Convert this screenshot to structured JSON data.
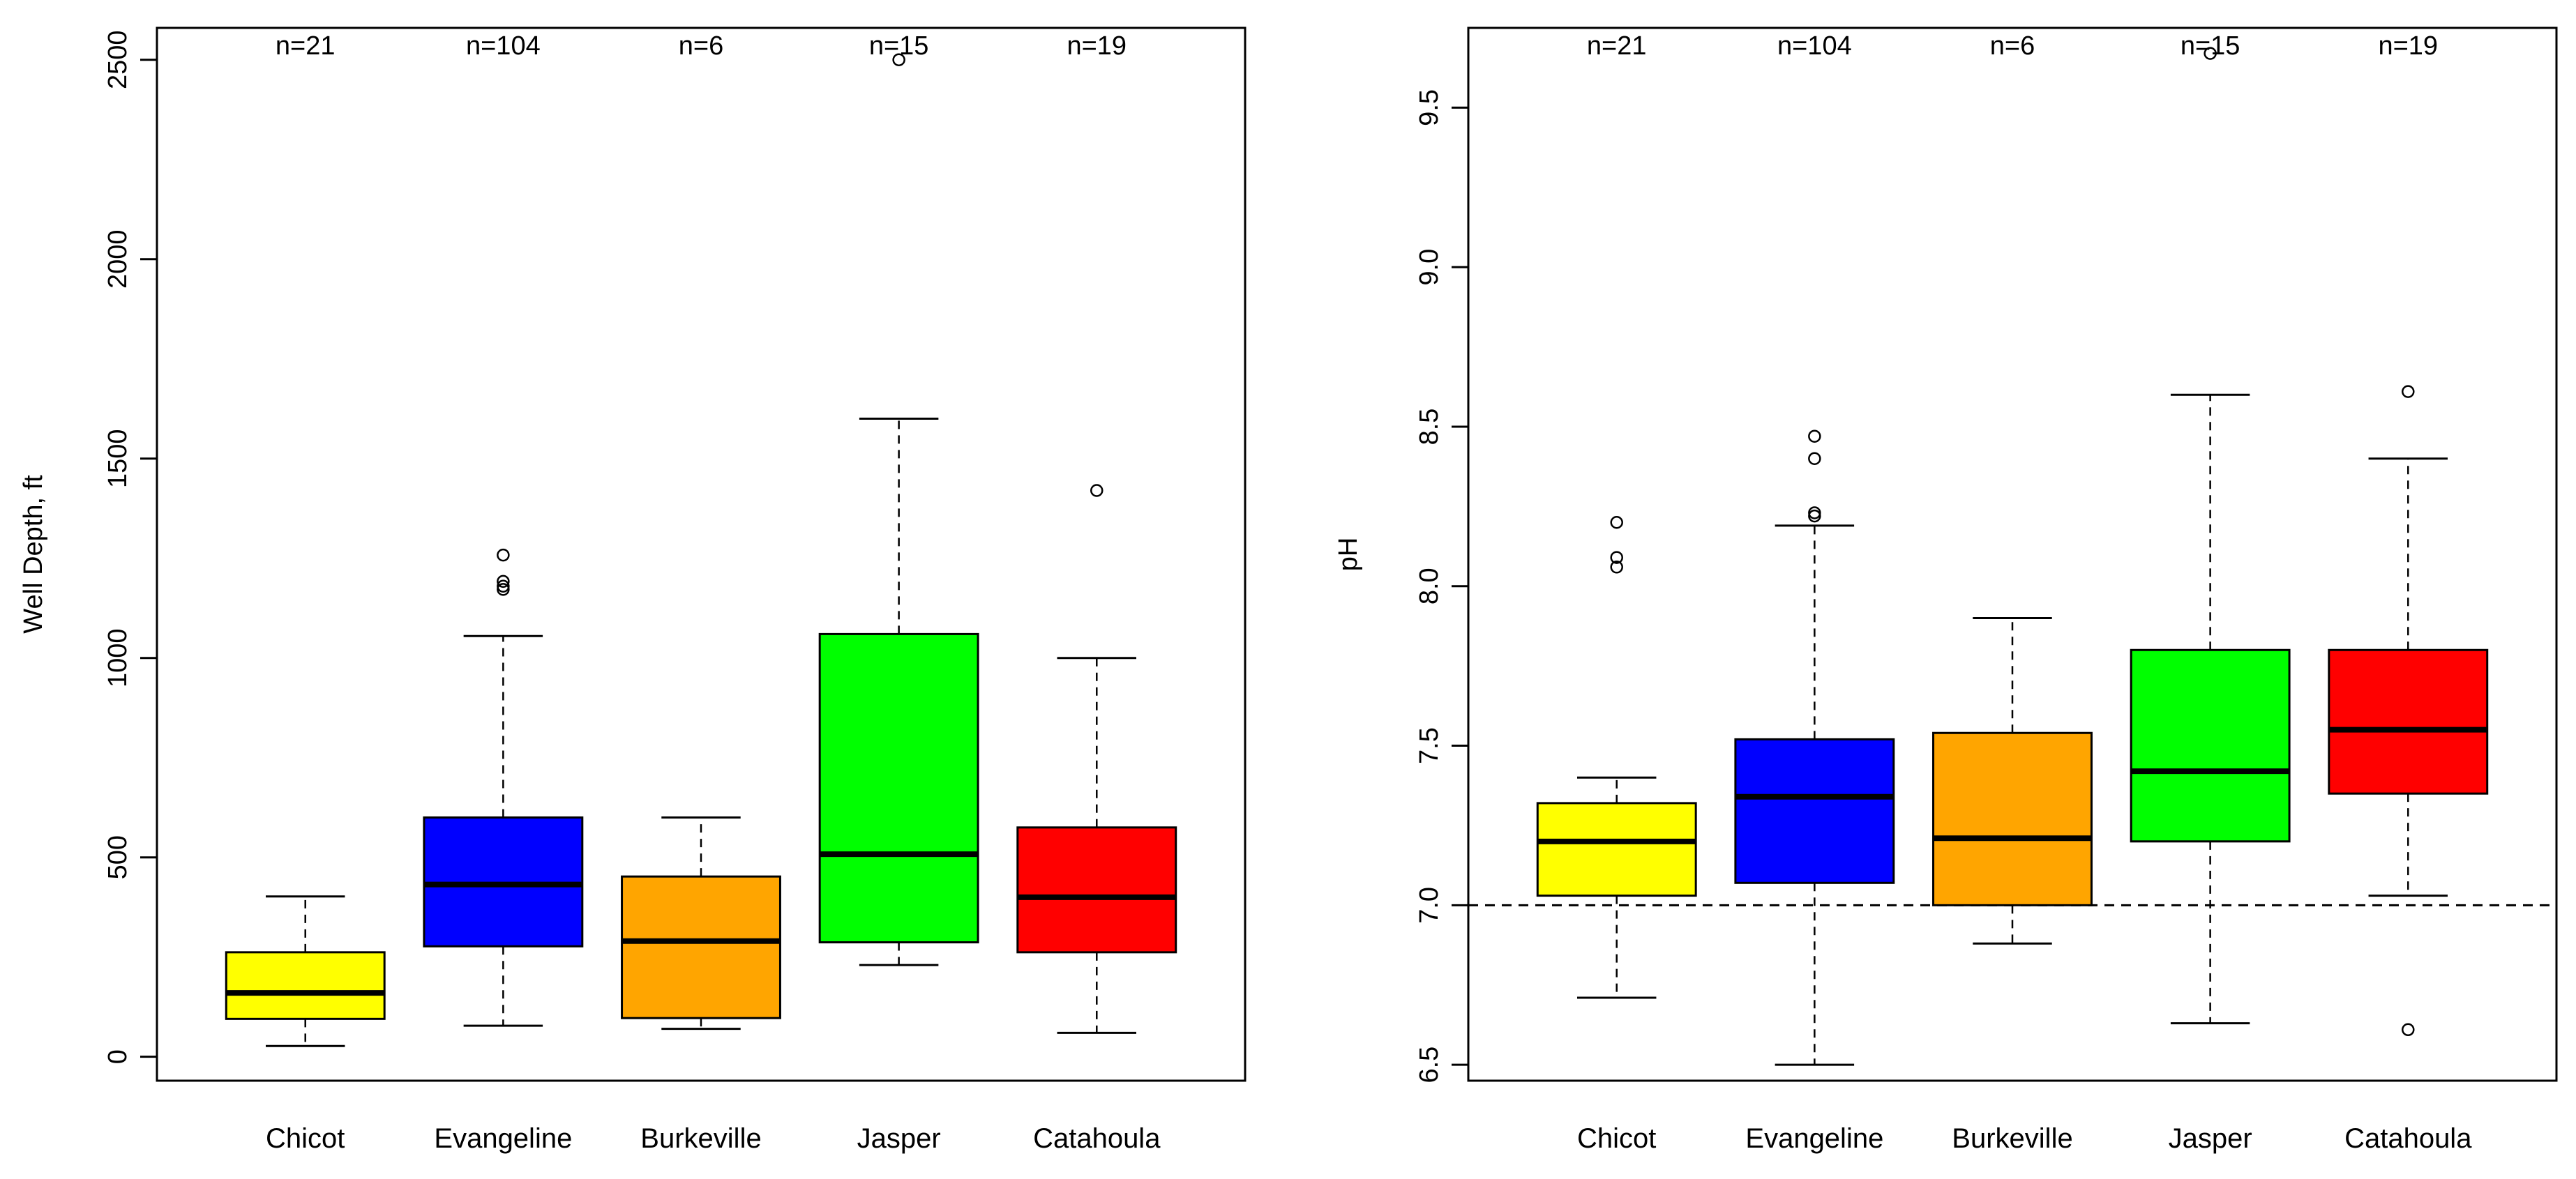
{
  "chart_data": [
    {
      "type": "boxplot",
      "ylabel": "Well Depth, ft",
      "xlabel": "",
      "ylim": [
        -60,
        2580
      ],
      "yticks": [
        0,
        500,
        1000,
        1500,
        2000,
        2500
      ],
      "ytick_labels": [
        "0",
        "500",
        "1000",
        "1500",
        "2000",
        "2500"
      ],
      "reference_line": null,
      "categories": [
        "Chicot",
        "Evangeline",
        "Burkeville",
        "Jasper",
        "Catahoula"
      ],
      "counts": [
        "n=21",
        "n=104",
        "n=6",
        "n=15",
        "n=19"
      ],
      "colors": [
        "#ffff00",
        "#0000ff",
        "#ffa500",
        "#00ff00",
        "#ff0000"
      ],
      "boxes": [
        {
          "whisker_low": 27,
          "q1": 95,
          "median": 160,
          "q3": 262,
          "whisker_high": 402,
          "outliers": []
        },
        {
          "whisker_low": 78,
          "q1": 277,
          "median": 432,
          "q3": 600,
          "whisker_high": 1055,
          "outliers": [
            1172,
            1180,
            1192,
            1258
          ]
        },
        {
          "whisker_low": 70,
          "q1": 97,
          "median": 290,
          "q3": 452,
          "whisker_high": 600,
          "outliers": []
        },
        {
          "whisker_low": 230,
          "q1": 287,
          "median": 508,
          "q3": 1060,
          "whisker_high": 1600,
          "outliers": [
            2500
          ]
        },
        {
          "whisker_low": 60,
          "q1": 262,
          "median": 400,
          "q3": 575,
          "whisker_high": 1000,
          "outliers": [
            1420
          ]
        }
      ]
    },
    {
      "type": "boxplot",
      "ylabel": "pH",
      "xlabel": "",
      "ylim": [
        6.45,
        9.75
      ],
      "yticks": [
        6.5,
        7.0,
        7.5,
        8.0,
        8.5,
        9.0,
        9.5
      ],
      "ytick_labels": [
        "6.5",
        "7.0",
        "7.5",
        "8.0",
        "8.5",
        "9.0",
        "9.5"
      ],
      "reference_line": 7.0,
      "categories": [
        "Chicot",
        "Evangeline",
        "Burkeville",
        "Jasper",
        "Catahoula"
      ],
      "counts": [
        "n=21",
        "n=104",
        "n=6",
        "n=15",
        "n=19"
      ],
      "colors": [
        "#ffff00",
        "#0000ff",
        "#ffa500",
        "#00ff00",
        "#ff0000"
      ],
      "boxes": [
        {
          "whisker_low": 6.71,
          "q1": 7.03,
          "median": 7.2,
          "q3": 7.32,
          "whisker_high": 7.4,
          "outliers": [
            8.06,
            8.09,
            8.2
          ]
        },
        {
          "whisker_low": 6.5,
          "q1": 7.07,
          "median": 7.34,
          "q3": 7.52,
          "whisker_high": 8.19,
          "outliers": [
            8.22,
            8.23,
            8.4,
            8.47
          ]
        },
        {
          "whisker_low": 6.88,
          "q1": 7.0,
          "median": 7.21,
          "q3": 7.54,
          "whisker_high": 7.9,
          "outliers": []
        },
        {
          "whisker_low": 6.63,
          "q1": 7.2,
          "median": 7.42,
          "q3": 7.8,
          "whisker_high": 8.6,
          "outliers": [
            9.67
          ]
        },
        {
          "whisker_low": 7.03,
          "q1": 7.35,
          "median": 7.55,
          "q3": 7.8,
          "whisker_high": 8.4,
          "outliers": [
            6.61,
            8.61
          ]
        }
      ]
    }
  ]
}
